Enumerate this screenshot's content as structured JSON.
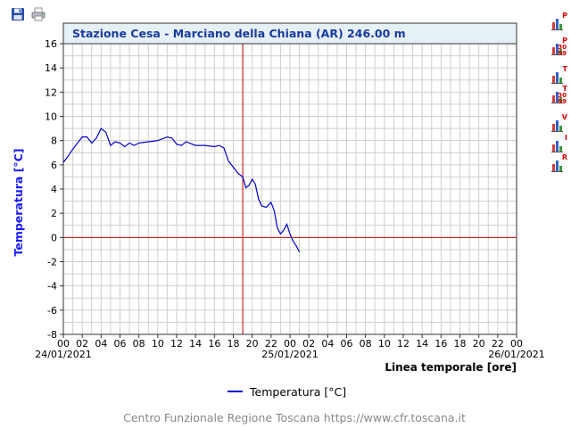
{
  "toolbar": {
    "save_icon": "floppy-disk-icon",
    "print_icon": "printer-icon"
  },
  "side_buttons": [
    {
      "name": "pressione-button",
      "icon": "bar-chart-icon",
      "letter": "P",
      "sub": ""
    },
    {
      "name": "pressione-30-99-button",
      "icon": "bar-chart-icon",
      "letter": "P",
      "sub": "30\n99"
    },
    {
      "name": "temperatura-button",
      "icon": "bar-chart-icon",
      "letter": "T",
      "sub": ""
    },
    {
      "name": "temperatura-30-99-button",
      "icon": "bar-chart-icon",
      "letter": "T",
      "sub": "30\n99"
    },
    {
      "name": "vento-button",
      "icon": "bar-chart-icon",
      "letter": "V",
      "sub": ""
    },
    {
      "name": "idro-button",
      "icon": "bar-chart-icon",
      "letter": "I",
      "sub": ""
    },
    {
      "name": "r-button",
      "icon": "bar-chart-icon",
      "letter": "R",
      "sub": ""
    }
  ],
  "footer": "Centro Funzionale Regione Toscana https://www.cfr.toscana.it",
  "colors": {
    "series": "#0000cc",
    "ylabel": "#1a1aff",
    "marker": "#cc0000",
    "title_bg": "#e6f0f7",
    "title_text": "#1a3aa0",
    "grid": "#cfcfcf"
  },
  "chart_data": {
    "type": "line",
    "title": "Stazione Cesa - Marciano della Chiana (AR) 246.00 m",
    "ylabel": "Temperatura [°C]",
    "xlabel": "Linea temporale [ore]",
    "ylim": [
      -8,
      16
    ],
    "yticks": [
      -8,
      -6,
      -4,
      -2,
      0,
      2,
      4,
      6,
      8,
      10,
      12,
      14,
      16
    ],
    "xlim": [
      "2021-01-24 00:00",
      "2021-01-26 00:00"
    ],
    "xtick_labels": [
      "00",
      "02",
      "04",
      "06",
      "08",
      "10",
      "12",
      "14",
      "16",
      "18",
      "20",
      "22",
      "00",
      "02",
      "04",
      "06",
      "08",
      "10",
      "12",
      "14",
      "16",
      "18",
      "20",
      "22",
      "00"
    ],
    "date_labels": [
      "24/01/2021",
      "25/01/2021",
      "26/01/2021"
    ],
    "grid": true,
    "legend_position": "bottom",
    "reference_lines": {
      "y": 0,
      "x": "2021-01-24 19:00"
    },
    "series": [
      {
        "name": "Temperatura [°C]",
        "x": [
          "2021-01-24 00:00",
          "2021-01-24 00:30",
          "2021-01-24 01:00",
          "2021-01-24 01:30",
          "2021-01-24 02:00",
          "2021-01-24 02:30",
          "2021-01-24 03:00",
          "2021-01-24 03:30",
          "2021-01-24 04:00",
          "2021-01-24 04:30",
          "2021-01-24 05:00",
          "2021-01-24 05:30",
          "2021-01-24 06:00",
          "2021-01-24 06:30",
          "2021-01-24 07:00",
          "2021-01-24 07:30",
          "2021-01-24 08:00",
          "2021-01-24 09:00",
          "2021-01-24 10:00",
          "2021-01-24 11:00",
          "2021-01-24 11:30",
          "2021-01-24 12:00",
          "2021-01-24 12:30",
          "2021-01-24 13:00",
          "2021-01-24 14:00",
          "2021-01-24 15:00",
          "2021-01-24 16:00",
          "2021-01-24 16:30",
          "2021-01-24 17:00",
          "2021-01-24 17:30",
          "2021-01-24 18:00",
          "2021-01-24 18:30",
          "2021-01-24 19:00",
          "2021-01-24 19:20",
          "2021-01-24 19:40",
          "2021-01-24 20:00",
          "2021-01-24 20:20",
          "2021-01-24 20:40",
          "2021-01-24 21:00",
          "2021-01-24 21:30",
          "2021-01-24 22:00",
          "2021-01-24 22:20",
          "2021-01-24 22:40",
          "2021-01-24 23:00",
          "2021-01-24 23:20",
          "2021-01-24 23:40",
          "2021-01-25 00:00",
          "2021-01-25 00:20",
          "2021-01-25 00:40",
          "2021-01-25 01:00"
        ],
        "values": [
          6.2,
          6.7,
          7.3,
          7.8,
          8.3,
          8.3,
          7.8,
          8.2,
          9.0,
          8.7,
          7.6,
          7.9,
          7.8,
          7.5,
          7.8,
          7.6,
          7.8,
          7.9,
          8.0,
          8.3,
          8.2,
          7.7,
          7.6,
          7.9,
          7.6,
          7.6,
          7.5,
          7.6,
          7.4,
          6.3,
          5.8,
          5.3,
          5.0,
          4.1,
          4.3,
          4.8,
          4.4,
          3.2,
          2.6,
          2.5,
          2.9,
          2.2,
          0.8,
          0.3,
          0.6,
          1.1,
          0.3,
          -0.3,
          -0.7,
          -1.2
        ]
      }
    ]
  }
}
